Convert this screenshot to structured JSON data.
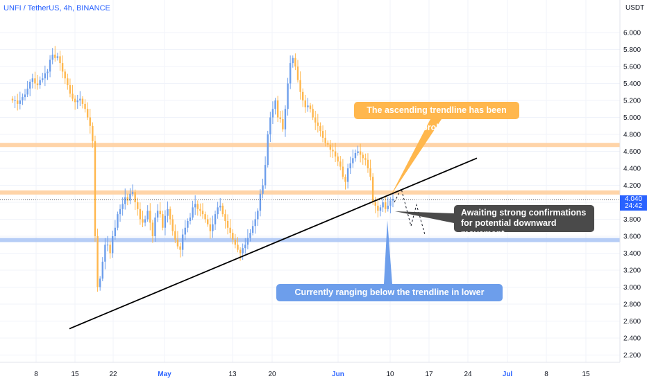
{
  "header": {
    "symbol_title": "UNFI / TetherUS, 4h, BINANCE",
    "currency": "USDT"
  },
  "price_badge": {
    "price": "4.040",
    "countdown": "24:42"
  },
  "colors": {
    "up": "#6d9eeb",
    "down": "#ffb74d",
    "resistance_zone": "#ffcc99",
    "support_zone": "#a9c4f5",
    "trendline": "#000000",
    "axis_text": "#131722",
    "date_text": "#2962ff"
  },
  "annotations": {
    "broken": "The ascending trendline has been broken",
    "awaiting_line1": "Awaiting strong confirmations",
    "awaiting_line2": "for potential downward movement",
    "ranging": "Currently ranging below the trendline in lower timeframes"
  },
  "chart_data": {
    "type": "candlestick",
    "x_axis": {
      "ticks": [
        "8",
        "15",
        "22",
        "May",
        "13",
        "20",
        "Jun",
        "10",
        "17",
        "24",
        "Jul",
        "8",
        "15"
      ]
    },
    "y_axis": {
      "ticks": [
        "6.000",
        "5.800",
        "5.600",
        "5.400",
        "5.200",
        "5.000",
        "4.800",
        "4.600",
        "4.400",
        "4.200",
        "4.000",
        "3.800",
        "3.600",
        "3.400",
        "3.200",
        "3.000",
        "2.800",
        "2.600",
        "2.400",
        "2.200"
      ],
      "range": [
        2.13,
        6.35
      ]
    },
    "last_price": 4.04,
    "zones": [
      {
        "type": "resistance",
        "from": 4.66,
        "to": 4.7
      },
      {
        "type": "resistance",
        "from": 4.1,
        "to": 4.14
      },
      {
        "type": "support",
        "from": 3.54,
        "to": 3.58
      }
    ],
    "trendline": {
      "from": {
        "x": "Apr 12",
        "y": 2.51
      },
      "to": {
        "x": "Jun 24",
        "y": 4.52
      }
    },
    "projection": [
      [
        4.0,
        4.16,
        3.72,
        3.97,
        3.62
      ]
    ],
    "closes": [
      5.2,
      5.2,
      5.16,
      5.2,
      5.24,
      5.27,
      5.34,
      5.42,
      5.46,
      5.4,
      5.38,
      5.44,
      5.46,
      5.52,
      5.54,
      5.68,
      5.74,
      5.7,
      5.72,
      5.64,
      5.54,
      5.46,
      5.38,
      5.28,
      5.22,
      5.18,
      5.2,
      5.22,
      5.16,
      5.1,
      5.0,
      4.9,
      4.72,
      3.6,
      3.0,
      3.1,
      3.3,
      3.5,
      3.5,
      3.4,
      3.6,
      3.7,
      3.86,
      3.92,
      3.98,
      4.06,
      4.02,
      4.1,
      4.12,
      4.0,
      3.92,
      3.8,
      3.76,
      3.8,
      3.9,
      3.76,
      3.6,
      3.82,
      3.9,
      3.86,
      3.7,
      3.84,
      3.92,
      3.8,
      3.66,
      3.56,
      3.48,
      3.44,
      3.62,
      3.7,
      3.78,
      3.82,
      3.94,
      3.98,
      3.92,
      3.9,
      3.86,
      3.8,
      3.74,
      3.66,
      3.74,
      3.86,
      3.94,
      3.96,
      3.86,
      3.78,
      3.7,
      3.64,
      3.56,
      3.5,
      3.44,
      3.4,
      3.46,
      3.5,
      3.58,
      3.64,
      3.72,
      3.8,
      3.9,
      4.1,
      4.2,
      4.44,
      4.8,
      5.0,
      5.1,
      5.2,
      5.0,
      4.98,
      4.86,
      5.1,
      5.4,
      5.64,
      5.7,
      5.6,
      5.44,
      5.3,
      5.2,
      5.12,
      5.14,
      5.1,
      5.0,
      4.94,
      4.9,
      4.84,
      4.76,
      4.7,
      4.68,
      4.62,
      4.6,
      4.54,
      4.48,
      4.42,
      4.3,
      4.24,
      4.4,
      4.46,
      4.52,
      4.58,
      4.6,
      4.56,
      4.52,
      4.5,
      4.4,
      4.3,
      4.0,
      3.96,
      3.9,
      3.94,
      4.0,
      3.92,
      3.96,
      4.02,
      4.04
    ]
  }
}
